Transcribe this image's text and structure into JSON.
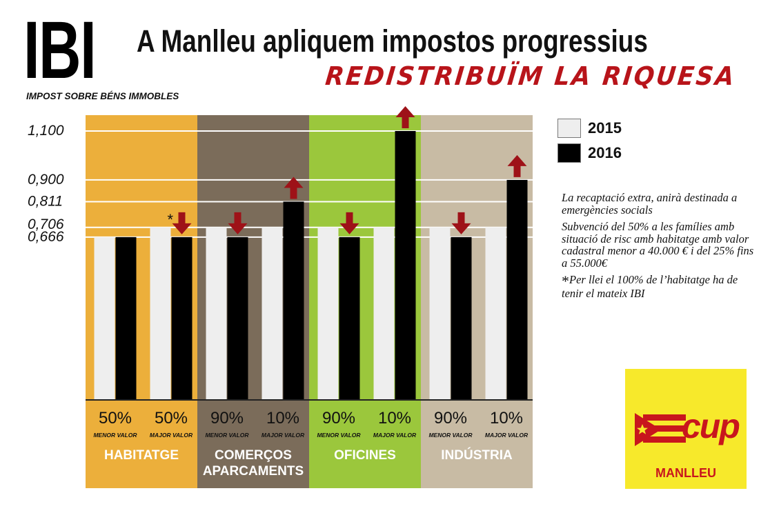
{
  "header": {
    "big_word": "IBI",
    "big_word_subtitle": "IMPOST SOBRE BÉNS IMMOBLES",
    "title": "A Manlleu apliquem impostos progressius",
    "slogan": "REDISTRIBUÏM LA RIQUESA"
  },
  "legend": {
    "items": [
      {
        "label": "2015",
        "color": "#eeeeee"
      },
      {
        "label": "2016",
        "color": "#000000"
      }
    ]
  },
  "notes": {
    "p1": "La recaptació extra, anirà destinada a emergències socials",
    "p2": "Subvenció del 50% a les famílies amb situació de risc amb habitatge amb valor cadastral menor a 40.000 € i del 25% fins a 55.000€",
    "star": "*",
    "p3": "Per llei el 100% de l’habitatge ha de tenir el mateix IBI"
  },
  "logo": {
    "word": "cup",
    "town": "MANLLEU",
    "bg_color": "#f7e92b",
    "fg_color": "#c8161d"
  },
  "chart_data": {
    "type": "bar",
    "ylim": [
      0,
      1.1
    ],
    "yticks": [
      0.666,
      0.706,
      0.811,
      0.9,
      1.1
    ],
    "ytick_labels": [
      "0,666",
      "0,706",
      "0,811",
      "0,900",
      "1,100"
    ],
    "annotation_star": "*",
    "arrow_color": "#9e1218",
    "groups": [
      {
        "name": "HABITATGE",
        "color": "#ecaf3b",
        "text_color": "#ffffff",
        "subgroups": [
          {
            "percent": "50%",
            "label": "MENOR VALOR",
            "v2015": 0.666,
            "v2016": 0.666,
            "arrow": "none"
          },
          {
            "percent": "50%",
            "label": "MAJOR VALOR",
            "v2015": 0.706,
            "v2016": 0.666,
            "arrow": "down",
            "star": true
          }
        ]
      },
      {
        "name": "COMERÇOS APARCAMENTS",
        "color": "#7b6c5a",
        "text_color": "#ffffff",
        "subgroups": [
          {
            "percent": "90%",
            "label": "MENOR VALOR",
            "v2015": 0.706,
            "v2016": 0.666,
            "arrow": "down"
          },
          {
            "percent": "10%",
            "label": "MAJOR VALOR",
            "v2015": 0.706,
            "v2016": 0.811,
            "arrow": "up"
          }
        ]
      },
      {
        "name": "OFICINES",
        "color": "#9bc73c",
        "text_color": "#ffffff",
        "subgroups": [
          {
            "percent": "90%",
            "label": "MENOR VALOR",
            "v2015": 0.706,
            "v2016": 0.666,
            "arrow": "down"
          },
          {
            "percent": "10%",
            "label": "MAJOR VALOR",
            "v2015": 0.706,
            "v2016": 1.1,
            "arrow": "up"
          }
        ]
      },
      {
        "name": "INDÚSTRIA",
        "color": "#c8bba4",
        "text_color": "#ffffff",
        "subgroups": [
          {
            "percent": "90%",
            "label": "MENOR VALOR",
            "v2015": 0.706,
            "v2016": 0.666,
            "arrow": "down"
          },
          {
            "percent": "10%",
            "label": "MAJOR VALOR",
            "v2015": 0.706,
            "v2016": 0.9,
            "arrow": "up"
          }
        ]
      }
    ]
  }
}
